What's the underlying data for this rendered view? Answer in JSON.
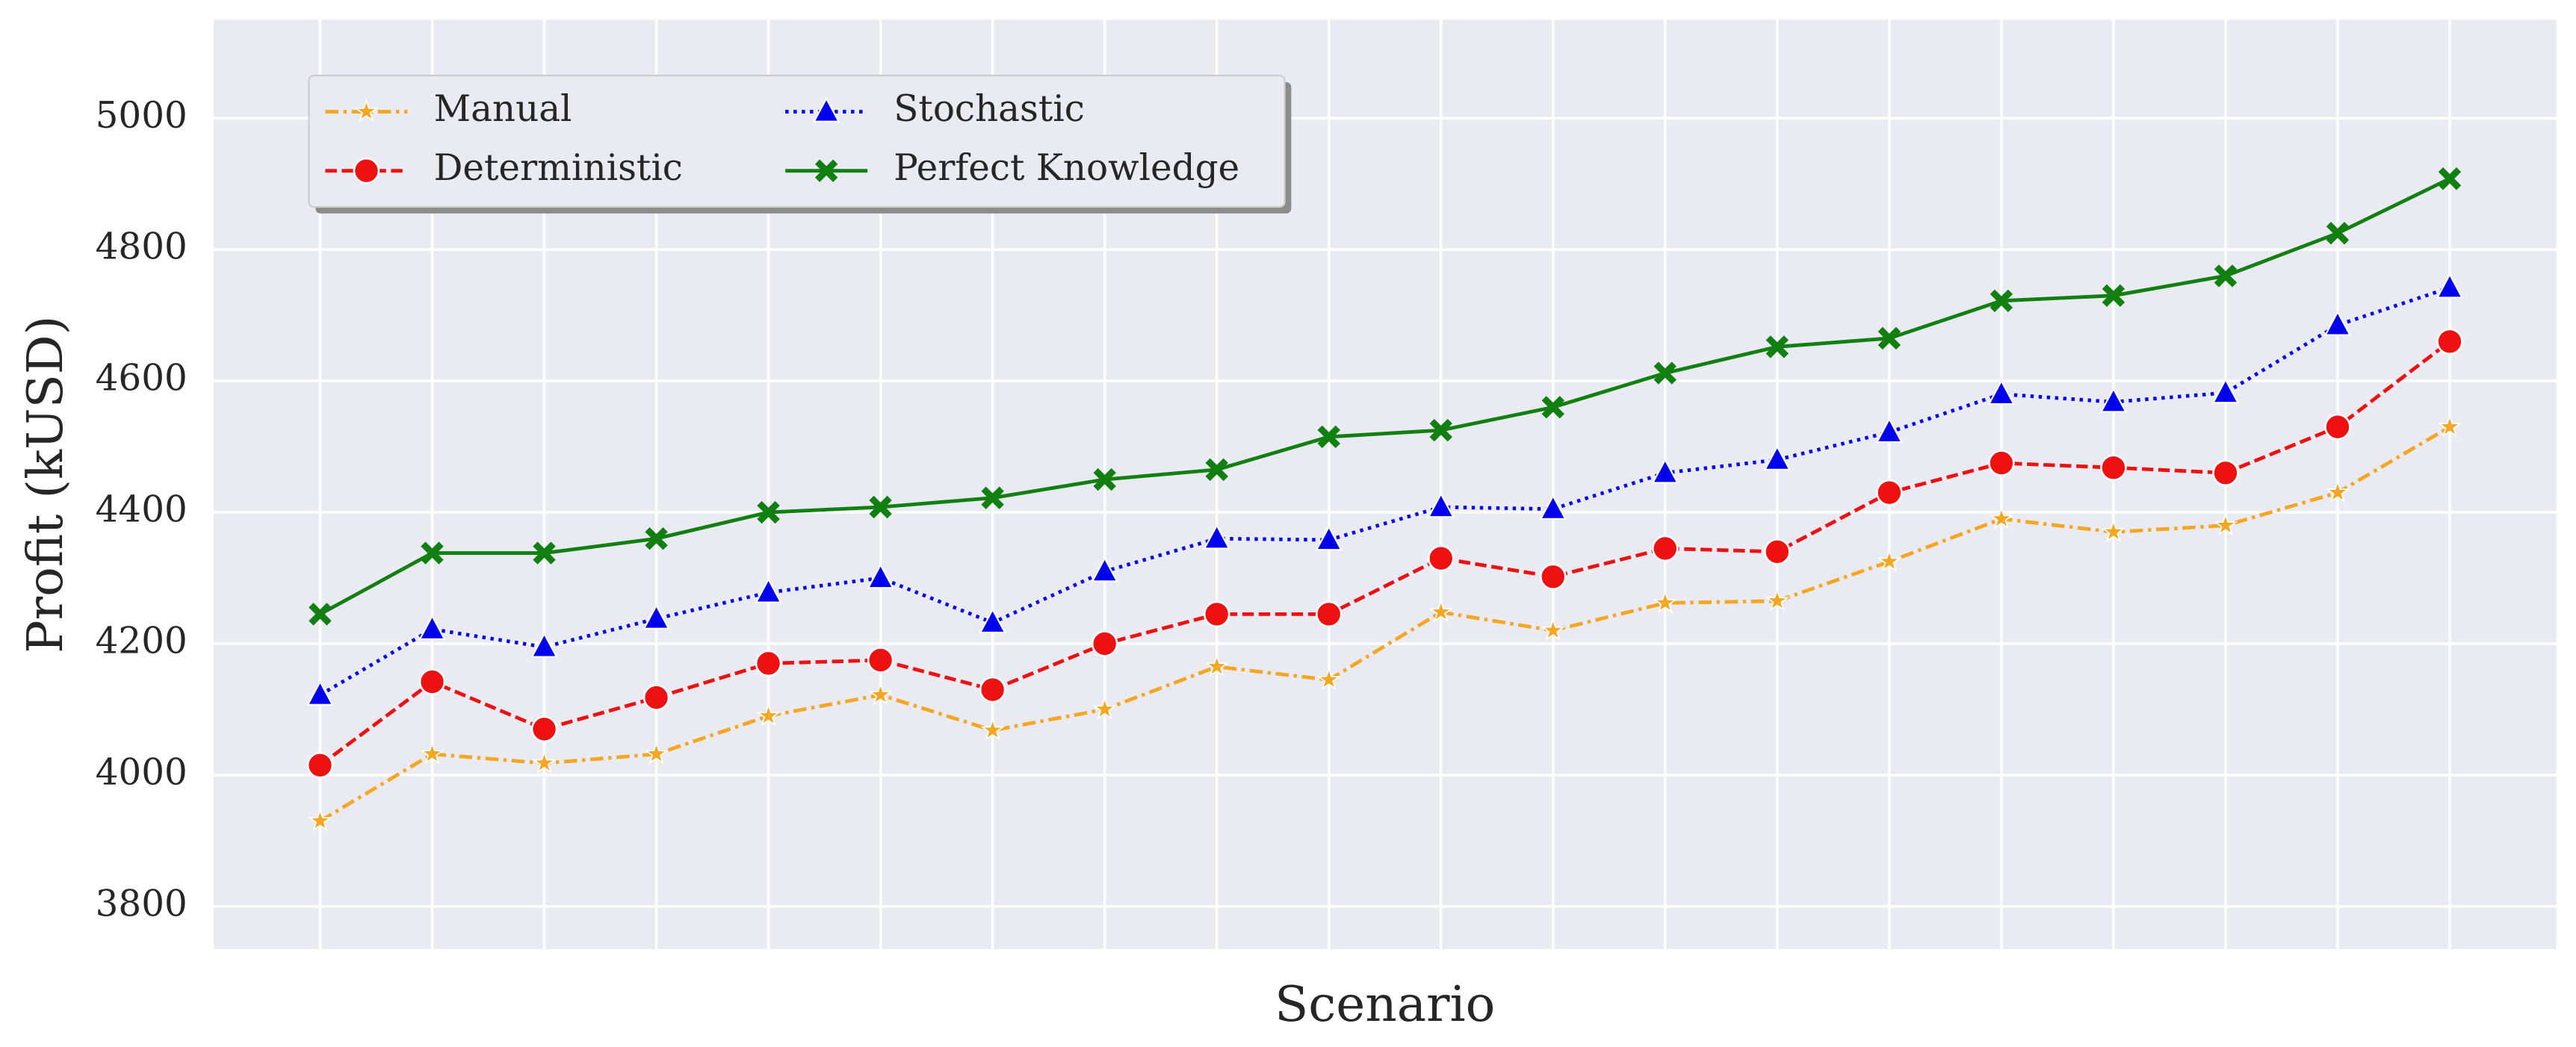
{
  "chart_data": {
    "type": "line",
    "xlabel": "Scenario",
    "ylabel": "Profit (kUSD)",
    "categories": [
      null,
      null,
      null,
      null,
      null,
      null,
      null,
      null,
      null,
      null,
      null,
      null,
      null,
      null,
      null,
      null,
      null,
      null,
      null,
      null
    ],
    "series": [
      {
        "name": "Manual",
        "color": "#f5a623",
        "marker": "star",
        "linestyle": "dashdot",
        "values": [
          3930,
          4032,
          4018,
          4032,
          4090,
          4122,
          4068,
          4100,
          4165,
          4145,
          4248,
          4220,
          4262,
          4265,
          4325,
          4390,
          4370,
          4380,
          4430,
          4530
        ]
      },
      {
        "name": "Deterministic",
        "color": "#ee1111",
        "marker": "circle",
        "linestyle": "dashed",
        "values": [
          4015,
          4142,
          4070,
          4118,
          4170,
          4175,
          4130,
          4200,
          4245,
          4245,
          4330,
          4302,
          4345,
          4340,
          4430,
          4475,
          4468,
          4460,
          4530,
          4660
        ]
      },
      {
        "name": "Stochastic",
        "color": "#0000ee",
        "marker": "triangle",
        "linestyle": "dotted",
        "values": [
          4122,
          4222,
          4195,
          4238,
          4278,
          4300,
          4232,
          4310,
          4360,
          4358,
          4408,
          4405,
          4460,
          4480,
          4522,
          4580,
          4568,
          4582,
          4685,
          4742
        ]
      },
      {
        "name": "Perfect Knowledge",
        "color": "#118011",
        "marker": "x",
        "linestyle": "solid",
        "values": [
          4245,
          4338,
          4338,
          4360,
          4400,
          4408,
          4422,
          4450,
          4465,
          4515,
          4525,
          4560,
          4612,
          4652,
          4665,
          4722,
          4730,
          4760,
          4825,
          4908
        ]
      }
    ],
    "ylim": [
      3735,
      5150
    ],
    "yticks": [
      3800,
      4000,
      4200,
      4400,
      4600,
      4800,
      5000
    ],
    "grid": true,
    "legend": "upper left",
    "legend_columns": 2
  }
}
